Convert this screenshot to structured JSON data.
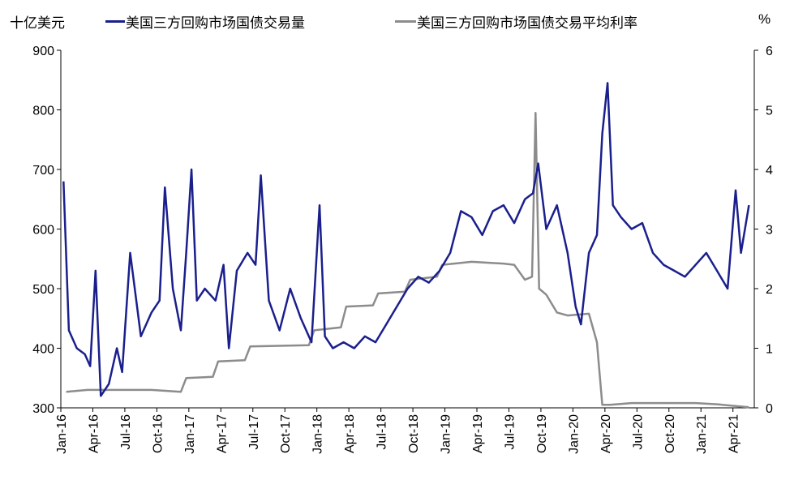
{
  "legend": {
    "left_unit": "十亿美元",
    "right_unit": "%"
  },
  "chart_data": {
    "type": "line",
    "grid": false,
    "legend_placement": "top",
    "ylabel_left": "十亿美元",
    "ylabel_right": "%",
    "ylim_left": [
      300,
      900
    ],
    "yticks_left": [
      300,
      400,
      500,
      600,
      700,
      800,
      900
    ],
    "ylim_right": [
      0,
      6
    ],
    "yticks_right": [
      0,
      1,
      2,
      3,
      4,
      5,
      6
    ],
    "xlim": [
      "2016-01",
      "2021-05"
    ],
    "xticks": [
      "Jan-16",
      "Apr-16",
      "Jul-16",
      "Oct-16",
      "Jan-17",
      "Apr-17",
      "Jul-17",
      "Oct-17",
      "Jan-18",
      "Apr-18",
      "Jul-18",
      "Oct-18",
      "Jan-19",
      "Apr-19",
      "Jul-19",
      "Oct-19",
      "Jan-20",
      "Apr-20",
      "Jul-20",
      "Oct-20",
      "Jan-21",
      "Apr-21"
    ],
    "series": [
      {
        "name": "美国三方回购市场国债交易量",
        "axis": "left",
        "color": "#1a1f8c",
        "points": [
          [
            "2016-01",
            680
          ],
          [
            "2016-01",
            430
          ],
          [
            "2016-02",
            400
          ],
          [
            "2016-03",
            390
          ],
          [
            "2016-03",
            370
          ],
          [
            "2016-04",
            530
          ],
          [
            "2016-04",
            320
          ],
          [
            "2016-05",
            340
          ],
          [
            "2016-06",
            400
          ],
          [
            "2016-06",
            360
          ],
          [
            "2016-07",
            560
          ],
          [
            "2016-08",
            420
          ],
          [
            "2016-09",
            460
          ],
          [
            "2016-10",
            480
          ],
          [
            "2016-10",
            670
          ],
          [
            "2016-11",
            500
          ],
          [
            "2016-12",
            430
          ],
          [
            "2016-12",
            560
          ],
          [
            "2017-01",
            700
          ],
          [
            "2017-01",
            480
          ],
          [
            "2017-02",
            500
          ],
          [
            "2017-03",
            480
          ],
          [
            "2017-04",
            540
          ],
          [
            "2017-04",
            400
          ],
          [
            "2017-05",
            530
          ],
          [
            "2017-06",
            560
          ],
          [
            "2017-07",
            540
          ],
          [
            "2017-07",
            690
          ],
          [
            "2017-08",
            480
          ],
          [
            "2017-09",
            430
          ],
          [
            "2017-10",
            500
          ],
          [
            "2017-11",
            450
          ],
          [
            "2017-12",
            410
          ],
          [
            "2018-01",
            640
          ],
          [
            "2018-01",
            420
          ],
          [
            "2018-02",
            400
          ],
          [
            "2018-03",
            410
          ],
          [
            "2018-04",
            400
          ],
          [
            "2018-05",
            420
          ],
          [
            "2018-06",
            410
          ],
          [
            "2018-07",
            440
          ],
          [
            "2018-08",
            470
          ],
          [
            "2018-09",
            500
          ],
          [
            "2018-10",
            520
          ],
          [
            "2018-11",
            510
          ],
          [
            "2018-12",
            530
          ],
          [
            "2019-01",
            560
          ],
          [
            "2019-02",
            630
          ],
          [
            "2019-03",
            620
          ],
          [
            "2019-04",
            590
          ],
          [
            "2019-05",
            630
          ],
          [
            "2019-06",
            640
          ],
          [
            "2019-07",
            610
          ],
          [
            "2019-08",
            650
          ],
          [
            "2019-09",
            660
          ],
          [
            "2019-09",
            710
          ],
          [
            "2019-10",
            600
          ],
          [
            "2019-11",
            640
          ],
          [
            "2019-12",
            560
          ],
          [
            "2020-01",
            470
          ],
          [
            "2020-01",
            440
          ],
          [
            "2020-02",
            560
          ],
          [
            "2020-03",
            590
          ],
          [
            "2020-03",
            760
          ],
          [
            "2020-04",
            845
          ],
          [
            "2020-04",
            640
          ],
          [
            "2020-05",
            620
          ],
          [
            "2020-06",
            600
          ],
          [
            "2020-07",
            610
          ],
          [
            "2020-08",
            560
          ],
          [
            "2020-09",
            540
          ],
          [
            "2020-10",
            530
          ],
          [
            "2020-11",
            520
          ],
          [
            "2020-12",
            540
          ],
          [
            "2021-01",
            560
          ],
          [
            "2021-02",
            530
          ],
          [
            "2021-03",
            500
          ],
          [
            "2021-04",
            665
          ],
          [
            "2021-04",
            560
          ],
          [
            "2021-05",
            640
          ]
        ]
      },
      {
        "name": "美国三方回购市场国债交易平均利率",
        "axis": "right",
        "color": "#8c8c8c",
        "points": [
          [
            "2016-01",
            0.27
          ],
          [
            "2016-03",
            0.3
          ],
          [
            "2016-06",
            0.3
          ],
          [
            "2016-09",
            0.3
          ],
          [
            "2016-12",
            0.27
          ],
          [
            "2016-12",
            0.5
          ],
          [
            "2017-03",
            0.52
          ],
          [
            "2017-03",
            0.78
          ],
          [
            "2017-06",
            0.8
          ],
          [
            "2017-06",
            1.03
          ],
          [
            "2017-12",
            1.05
          ],
          [
            "2017-12",
            1.3
          ],
          [
            "2018-03",
            1.35
          ],
          [
            "2018-03",
            1.7
          ],
          [
            "2018-06",
            1.72
          ],
          [
            "2018-06",
            1.92
          ],
          [
            "2018-09",
            1.95
          ],
          [
            "2018-09",
            2.15
          ],
          [
            "2018-12",
            2.2
          ],
          [
            "2018-12",
            2.4
          ],
          [
            "2019-03",
            2.45
          ],
          [
            "2019-06",
            2.42
          ],
          [
            "2019-07",
            2.4
          ],
          [
            "2019-08",
            2.15
          ],
          [
            "2019-09",
            2.2
          ],
          [
            "2019-09",
            4.95
          ],
          [
            "2019-09",
            2.0
          ],
          [
            "2019-10",
            1.9
          ],
          [
            "2019-11",
            1.6
          ],
          [
            "2019-12",
            1.55
          ],
          [
            "2020-02",
            1.58
          ],
          [
            "2020-03",
            1.1
          ],
          [
            "2020-03",
            0.05
          ],
          [
            "2020-04",
            0.05
          ],
          [
            "2020-06",
            0.08
          ],
          [
            "2020-09",
            0.08
          ],
          [
            "2020-12",
            0.08
          ],
          [
            "2021-02",
            0.06
          ],
          [
            "2021-05",
            0.01
          ]
        ]
      }
    ]
  }
}
